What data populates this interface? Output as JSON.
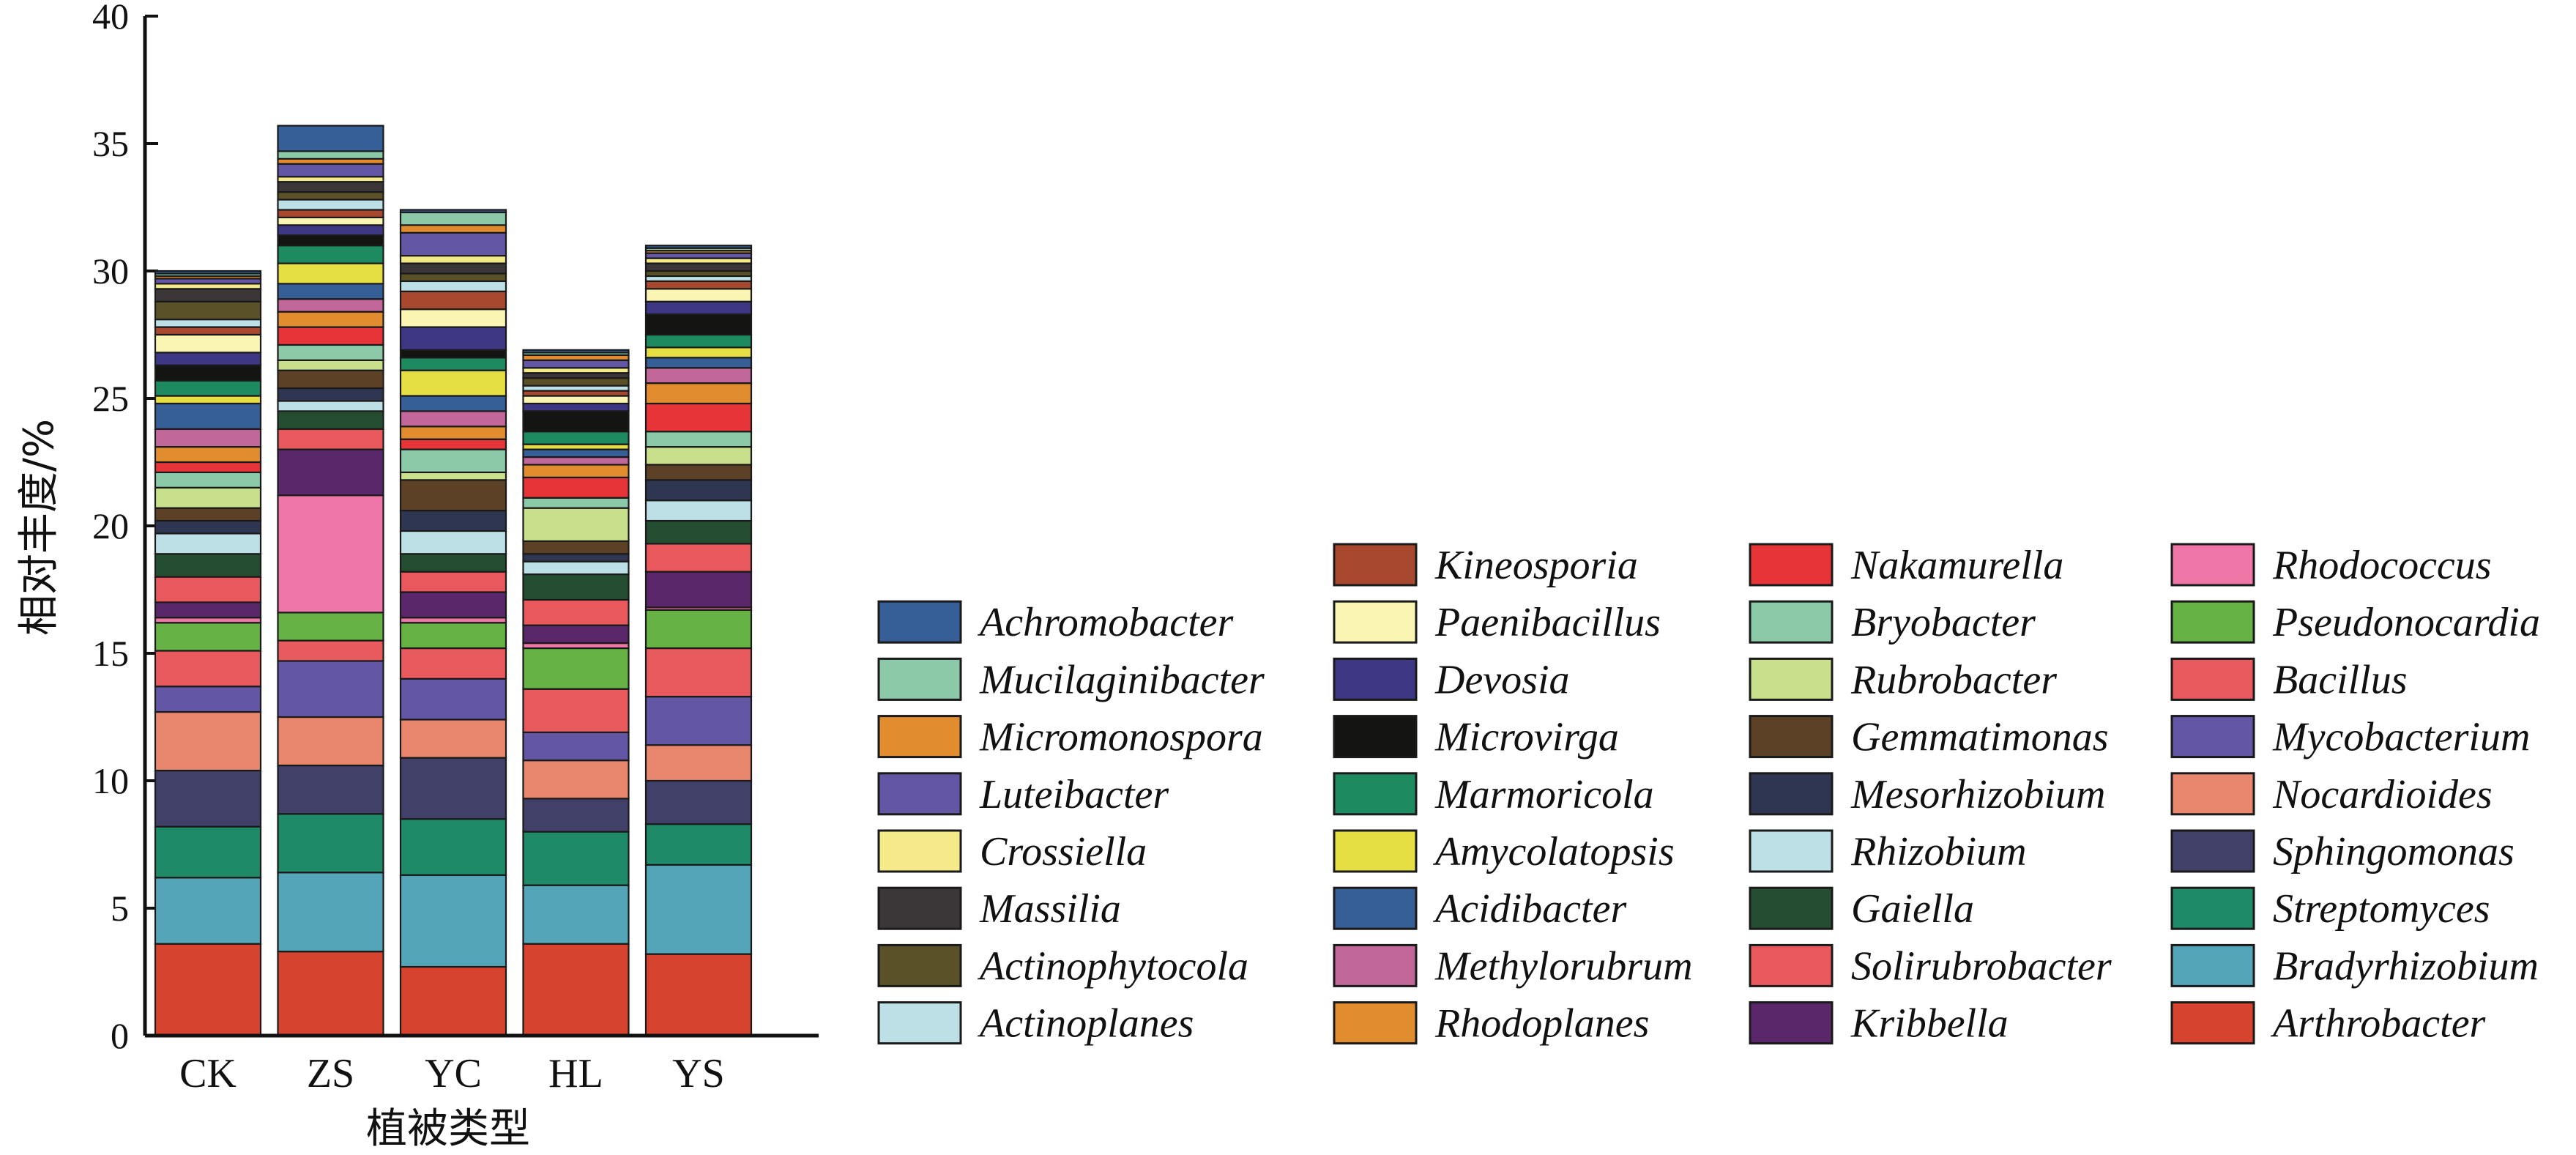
{
  "chart_data": {
    "type": "bar",
    "stacked": true,
    "title": "",
    "xlabel": "植被类型",
    "ylabel": "相对丰度/%",
    "ylim": [
      0,
      40
    ],
    "yticks": [
      0,
      5,
      10,
      15,
      20,
      25,
      30,
      35,
      40
    ],
    "categories": [
      "CK",
      "ZS",
      "YC",
      "HL",
      "YS"
    ],
    "legend_position": "right",
    "legend_columns": [
      [
        "Achromobacter",
        "Mucilaginibacter",
        "Micromonospora",
        "Luteibacter",
        "Crossiella",
        "Massilia",
        "Actinophytocola",
        "Actinoplanes"
      ],
      [
        "Kineosporia",
        "Paenibacillus",
        "Devosia",
        "Microvirga",
        "Marmoricola",
        "Amycolatopsis",
        "Acidibacter",
        "Methylorubrum",
        "Rhodoplanes"
      ],
      [
        "Nakamurella",
        "Bryobacter",
        "Rubrobacter",
        "Gemmatimonas",
        "Mesorhizobium",
        "Rhizobium",
        "Gaiella",
        "Solirubrobacter",
        "Kribbella"
      ],
      [
        "Rhodococcus",
        "Pseudonocardia",
        "Bacillus",
        "Mycobacterium",
        "Nocardioides",
        "Sphingomonas",
        "Streptomyces",
        "Bradyrhizobium",
        "Arthrobacter"
      ]
    ],
    "series": [
      {
        "name": "Arthrobacter",
        "color": "#d6432f",
        "values": [
          3.6,
          3.3,
          2.7,
          3.6,
          3.2
        ]
      },
      {
        "name": "Bradyrhizobium",
        "color": "#55a5b8",
        "values": [
          2.6,
          3.1,
          3.6,
          2.3,
          3.5
        ]
      },
      {
        "name": "Streptomyces",
        "color": "#1f8a68",
        "values": [
          2.0,
          2.3,
          2.2,
          2.1,
          1.6
        ]
      },
      {
        "name": "Sphingomonas",
        "color": "#414068",
        "values": [
          2.2,
          1.9,
          2.4,
          1.3,
          1.7
        ]
      },
      {
        "name": "Nocardioides",
        "color": "#e9876e",
        "values": [
          2.3,
          1.9,
          1.5,
          1.5,
          1.4
        ]
      },
      {
        "name": "Mycobacterium",
        "color": "#6356a4",
        "values": [
          1.0,
          2.2,
          1.6,
          1.1,
          1.9
        ]
      },
      {
        "name": "Bacillus",
        "color": "#e95a5e",
        "values": [
          1.4,
          0.8,
          1.2,
          1.7,
          1.9
        ]
      },
      {
        "name": "Pseudonocardia",
        "color": "#66b245",
        "values": [
          1.1,
          1.1,
          1.0,
          1.6,
          1.5
        ]
      },
      {
        "name": "Rhodococcus",
        "color": "#ee77a8",
        "values": [
          0.2,
          4.6,
          0.2,
          0.2,
          0.1
        ]
      },
      {
        "name": "Kribbella",
        "color": "#5a276a",
        "values": [
          0.6,
          1.8,
          1.0,
          0.7,
          1.4
        ]
      },
      {
        "name": "Solirubrobacter",
        "color": "#e9585d",
        "values": [
          1.0,
          0.8,
          0.8,
          1.0,
          1.1
        ]
      },
      {
        "name": "Gaiella",
        "color": "#244d31",
        "values": [
          0.9,
          0.7,
          0.7,
          1.0,
          0.9
        ]
      },
      {
        "name": "Rhizobium",
        "color": "#bde0e6",
        "values": [
          0.8,
          0.4,
          0.9,
          0.5,
          0.8
        ]
      },
      {
        "name": "Mesorhizobium",
        "color": "#2f3652",
        "values": [
          0.5,
          0.5,
          0.8,
          0.3,
          0.8
        ]
      },
      {
        "name": "Gemmatimonas",
        "color": "#5c4126",
        "values": [
          0.5,
          0.7,
          1.2,
          0.5,
          0.6
        ]
      },
      {
        "name": "Rubrobacter",
        "color": "#c8df8c",
        "values": [
          0.8,
          0.4,
          0.3,
          1.3,
          0.7
        ]
      },
      {
        "name": "Bryobacter",
        "color": "#8bc9a8",
        "values": [
          0.6,
          0.6,
          0.9,
          0.4,
          0.6
        ]
      },
      {
        "name": "Nakamurella",
        "color": "#e63439",
        "values": [
          0.4,
          0.7,
          0.4,
          0.8,
          1.1
        ]
      },
      {
        "name": "Rhodoplanes",
        "color": "#e28c30",
        "values": [
          0.6,
          0.6,
          0.5,
          0.5,
          0.8
        ]
      },
      {
        "name": "Methylorubrum",
        "color": "#c2679a",
        "values": [
          0.7,
          0.5,
          0.6,
          0.3,
          0.6
        ]
      },
      {
        "name": "Acidibacter",
        "color": "#365e97",
        "values": [
          1.0,
          0.6,
          0.6,
          0.3,
          0.4
        ]
      },
      {
        "name": "Amycolatopsis",
        "color": "#e6df44",
        "values": [
          0.3,
          0.8,
          1.0,
          0.2,
          0.4
        ]
      },
      {
        "name": "Marmoricola",
        "color": "#1e8a60",
        "values": [
          0.6,
          0.7,
          0.5,
          0.5,
          0.5
        ]
      },
      {
        "name": "Microvirga",
        "color": "#141412",
        "values": [
          0.6,
          0.4,
          0.3,
          0.8,
          0.8
        ]
      },
      {
        "name": "Devosia",
        "color": "#3e3784",
        "values": [
          0.5,
          0.4,
          0.9,
          0.3,
          0.5
        ]
      },
      {
        "name": "Paenibacillus",
        "color": "#fbf5b3",
        "values": [
          0.7,
          0.3,
          0.7,
          0.3,
          0.5
        ]
      },
      {
        "name": "Kineosporia",
        "color": "#a8482f",
        "values": [
          0.3,
          0.3,
          0.7,
          0.2,
          0.3
        ]
      },
      {
        "name": "Actinoplanes",
        "color": "#bde0e6",
        "values": [
          0.3,
          0.4,
          0.4,
          0.2,
          0.2
        ]
      },
      {
        "name": "Actinophytocola",
        "color": "#5a5129",
        "values": [
          0.7,
          0.3,
          0.3,
          0.3,
          0.2
        ]
      },
      {
        "name": "Massilia",
        "color": "#3b3739",
        "values": [
          0.5,
          0.4,
          0.4,
          0.2,
          0.3
        ]
      },
      {
        "name": "Crossiella",
        "color": "#f4ea8a",
        "values": [
          0.2,
          0.2,
          0.3,
          0.2,
          0.2
        ]
      },
      {
        "name": "Luteibacter",
        "color": "#6356a4",
        "values": [
          0.2,
          0.5,
          0.9,
          0.3,
          0.2
        ]
      },
      {
        "name": "Micromonospora",
        "color": "#e28c30",
        "values": [
          0.1,
          0.2,
          0.3,
          0.2,
          0.1
        ]
      },
      {
        "name": "Mucilaginibacter",
        "color": "#8bc9a8",
        "values": [
          0.1,
          0.3,
          0.5,
          0.1,
          0.1
        ]
      },
      {
        "name": "Achromobacter",
        "color": "#365e97",
        "values": [
          0.1,
          1.0,
          0.1,
          0.1,
          0.1
        ]
      }
    ]
  }
}
